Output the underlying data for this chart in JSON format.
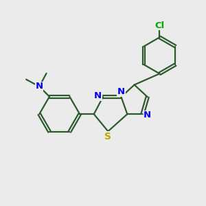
{
  "bg_color": "#ebebeb",
  "bond_color": "#2d5a2d",
  "N_color": "#0000ee",
  "S_color": "#bbaa00",
  "Cl_color": "#00aa00",
  "line_width": 1.6,
  "figsize": [
    3.0,
    3.0
  ],
  "dpi": 100,
  "xlim": [
    0,
    10
  ],
  "ylim": [
    0,
    10
  ]
}
